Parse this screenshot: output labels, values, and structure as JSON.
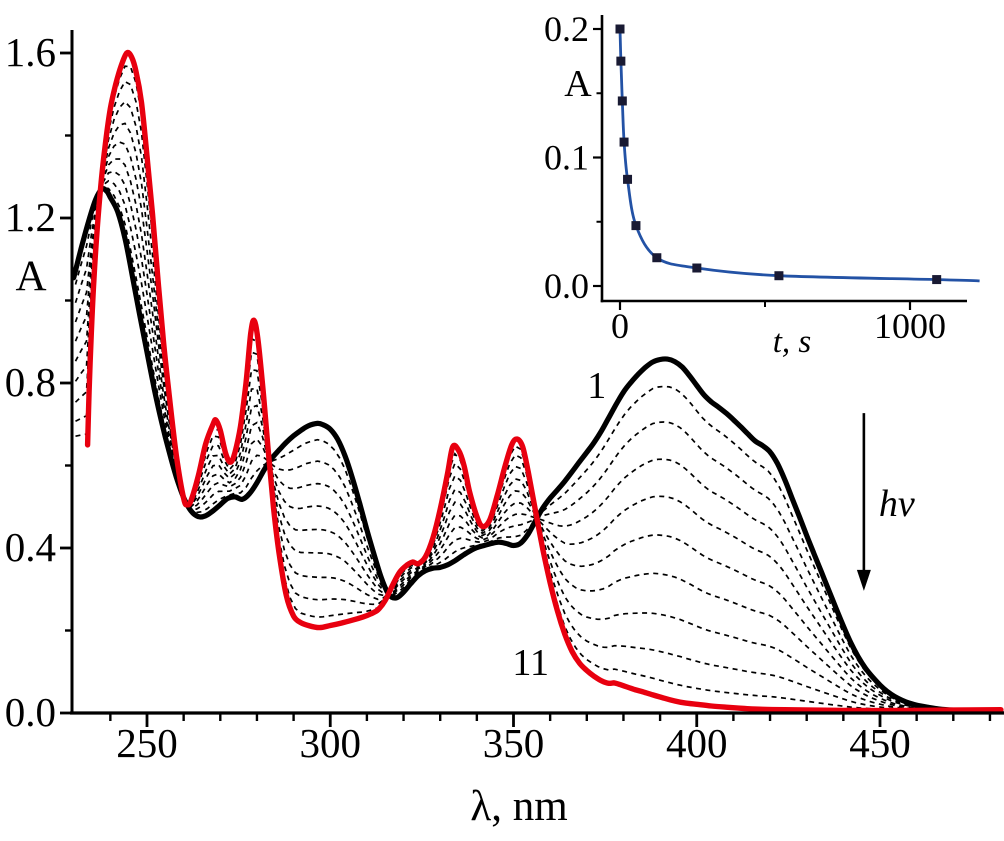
{
  "figure": {
    "background": "#ffffff",
    "colors": {
      "initial_curve": "#000000",
      "final_curve": "#e8000f",
      "intermediate_curve": "#000000",
      "axis": "#000000",
      "inset_line": "#2352a5",
      "inset_marker": "#191a33"
    }
  },
  "chart_data": {
    "main": {
      "type": "line",
      "title": "",
      "xlabel": "λ, nm",
      "ylabel": "A",
      "xlim": [
        230,
        483
      ],
      "ylim": [
        0,
        1.65
      ],
      "grid": false,
      "x_major_ticks": [
        {
          "v": 250,
          "label": "250"
        },
        {
          "v": 300,
          "label": "300"
        },
        {
          "v": 350,
          "label": "350"
        },
        {
          "v": 400,
          "label": "400"
        },
        {
          "v": 450,
          "label": "450"
        }
      ],
      "x_minor_ticks": [
        240,
        260,
        270,
        280,
        290,
        310,
        320,
        330,
        340,
        360,
        370,
        380,
        390,
        410,
        420,
        430,
        440,
        460,
        470,
        480
      ],
      "y_major_ticks": [
        {
          "v": 0.0,
          "label": "0.0"
        },
        {
          "v": 0.4,
          "label": "0.4"
        },
        {
          "v": 0.8,
          "label": "0.8"
        },
        {
          "v": 1.2,
          "label": "1.2"
        },
        {
          "v": 1.6,
          "label": "1.6"
        }
      ],
      "y_minor_ticks": [
        0.2,
        0.6,
        1.0,
        1.4
      ],
      "series": [
        {
          "name": "spectrum 1 (initial, before irradiation)",
          "style": "solid",
          "color": "#000000",
          "width": 5.2,
          "points": [
            [
              230,
              1.055
            ],
            [
              232,
              1.125
            ],
            [
              234,
              1.19
            ],
            [
              236,
              1.245
            ],
            [
              237.7,
              1.27
            ],
            [
              239,
              1.265
            ],
            [
              240,
              1.25
            ],
            [
              242,
              1.215
            ],
            [
              244,
              1.15
            ],
            [
              246,
              1.06
            ],
            [
              248,
              0.965
            ],
            [
              250,
              0.875
            ],
            [
              252,
              0.785
            ],
            [
              254,
              0.705
            ],
            [
              256,
              0.635
            ],
            [
              258,
              0.572
            ],
            [
              260,
              0.522
            ],
            [
              262,
              0.49
            ],
            [
              264,
              0.476
            ],
            [
              266,
              0.478
            ],
            [
              268,
              0.49
            ],
            [
              270,
              0.505
            ],
            [
              272,
              0.52
            ],
            [
              274,
              0.524
            ],
            [
              276,
              0.518
            ],
            [
              278,
              0.532
            ],
            [
              280,
              0.558
            ],
            [
              282,
              0.59
            ],
            [
              284,
              0.617
            ],
            [
              286,
              0.637
            ],
            [
              288,
              0.656
            ],
            [
              290,
              0.672
            ],
            [
              292,
              0.685
            ],
            [
              294,
              0.696
            ],
            [
              296.5,
              0.702
            ],
            [
              298,
              0.699
            ],
            [
              300,
              0.688
            ],
            [
              302,
              0.664
            ],
            [
              304,
              0.624
            ],
            [
              306,
              0.571
            ],
            [
              308,
              0.509
            ],
            [
              310,
              0.444
            ],
            [
              312,
              0.383
            ],
            [
              314,
              0.326
            ],
            [
              316,
              0.287
            ],
            [
              318,
              0.279
            ],
            [
              320,
              0.293
            ],
            [
              322,
              0.314
            ],
            [
              324,
              0.333
            ],
            [
              326,
              0.345
            ],
            [
              328,
              0.351
            ],
            [
              330,
              0.353
            ],
            [
              332,
              0.359
            ],
            [
              334,
              0.369
            ],
            [
              336,
              0.381
            ],
            [
              338,
              0.392
            ],
            [
              340,
              0.401
            ],
            [
              342,
              0.406
            ],
            [
              344,
              0.411
            ],
            [
              346,
              0.414
            ],
            [
              348,
              0.411
            ],
            [
              350,
              0.406
            ],
            [
              352,
              0.412
            ],
            [
              354,
              0.434
            ],
            [
              356,
              0.466
            ],
            [
              358,
              0.497
            ],
            [
              360,
              0.521
            ],
            [
              362,
              0.541
            ],
            [
              364,
              0.562
            ],
            [
              366,
              0.585
            ],
            [
              368,
              0.609
            ],
            [
              370,
              0.632
            ],
            [
              372,
              0.656
            ],
            [
              374,
              0.684
            ],
            [
              376,
              0.716
            ],
            [
              378,
              0.748
            ],
            [
              380,
              0.778
            ],
            [
              382,
              0.801
            ],
            [
              384,
              0.821
            ],
            [
              386,
              0.838
            ],
            [
              388,
              0.851
            ],
            [
              390,
              0.857
            ],
            [
              392,
              0.858
            ],
            [
              394,
              0.852
            ],
            [
              396,
              0.839
            ],
            [
              398,
              0.818
            ],
            [
              400,
              0.794
            ],
            [
              402,
              0.771
            ],
            [
              404,
              0.754
            ],
            [
              406,
              0.741
            ],
            [
              408,
              0.727
            ],
            [
              410,
              0.711
            ],
            [
              412,
              0.694
            ],
            [
              414,
              0.676
            ],
            [
              416,
              0.659
            ],
            [
              418,
              0.648
            ],
            [
              420,
              0.633
            ],
            [
              422,
              0.605
            ],
            [
              424,
              0.566
            ],
            [
              426,
              0.521
            ],
            [
              428,
              0.476
            ],
            [
              430,
              0.43
            ],
            [
              432,
              0.386
            ],
            [
              434,
              0.342
            ],
            [
              436,
              0.298
            ],
            [
              438,
              0.254
            ],
            [
              440,
              0.211
            ],
            [
              442,
              0.171
            ],
            [
              444,
              0.137
            ],
            [
              446,
              0.109
            ],
            [
              448,
              0.087
            ],
            [
              450,
              0.068
            ],
            [
              452,
              0.052
            ],
            [
              454,
              0.04
            ],
            [
              456,
              0.031
            ],
            [
              458,
              0.024
            ],
            [
              460,
              0.019
            ],
            [
              463,
              0.014
            ],
            [
              466,
              0.01
            ],
            [
              470,
              0.007
            ],
            [
              475,
              0.005
            ],
            [
              480,
              0.004
            ],
            [
              483,
              0.004
            ]
          ]
        },
        {
          "name": "spectrum 11 (final photoproduct)",
          "style": "solid",
          "color": "#e8000f",
          "width": 5.4,
          "points": [
            [
              233.8,
              0.65
            ],
            [
              234.2,
              0.78
            ],
            [
              234.8,
              0.92
            ],
            [
              235.5,
              1.05
            ],
            [
              236.3,
              1.16
            ],
            [
              237.3,
              1.27
            ],
            [
              238.5,
              1.37
            ],
            [
              240,
              1.465
            ],
            [
              241.5,
              1.525
            ],
            [
              243,
              1.57
            ],
            [
              244.5,
              1.6
            ],
            [
              245.8,
              1.59
            ],
            [
              247,
              1.555
            ],
            [
              248.5,
              1.48
            ],
            [
              250,
              1.35
            ],
            [
              251.5,
              1.21
            ],
            [
              253,
              1.05
            ],
            [
              254.5,
              0.9
            ],
            [
              256,
              0.775
            ],
            [
              258,
              0.625
            ],
            [
              260,
              0.52
            ],
            [
              261,
              0.505
            ],
            [
              262,
              0.515
            ],
            [
              264,
              0.575
            ],
            [
              266,
              0.652
            ],
            [
              268,
              0.7
            ],
            [
              268.8,
              0.71
            ],
            [
              270,
              0.685
            ],
            [
              271.5,
              0.628
            ],
            [
              272.8,
              0.608
            ],
            [
              274,
              0.632
            ],
            [
              275.5,
              0.695
            ],
            [
              277,
              0.8
            ],
            [
              278.3,
              0.92
            ],
            [
              279.2,
              0.952
            ],
            [
              280.2,
              0.91
            ],
            [
              281.5,
              0.8
            ],
            [
              283,
              0.645
            ],
            [
              284.5,
              0.5
            ],
            [
              286,
              0.39
            ],
            [
              288,
              0.285
            ],
            [
              290,
              0.235
            ],
            [
              292,
              0.219
            ],
            [
              294,
              0.212
            ],
            [
              297,
              0.207
            ],
            [
              300,
              0.212
            ],
            [
              303,
              0.218
            ],
            [
              306,
              0.225
            ],
            [
              309,
              0.233
            ],
            [
              311,
              0.24
            ],
            [
              313,
              0.25
            ],
            [
              315,
              0.273
            ],
            [
              317,
              0.31
            ],
            [
              319,
              0.342
            ],
            [
              321,
              0.359
            ],
            [
              322.5,
              0.366
            ],
            [
              324,
              0.362
            ],
            [
              326,
              0.379
            ],
            [
              328,
              0.424
            ],
            [
              330,
              0.494
            ],
            [
              332,
              0.58
            ],
            [
              333.4,
              0.645
            ],
            [
              335,
              0.637
            ],
            [
              336.5,
              0.6
            ],
            [
              338,
              0.537
            ],
            [
              340,
              0.476
            ],
            [
              341.6,
              0.452
            ],
            [
              343.5,
              0.468
            ],
            [
              345.5,
              0.525
            ],
            [
              347.5,
              0.592
            ],
            [
              349.5,
              0.65
            ],
            [
              351,
              0.664
            ],
            [
              352.5,
              0.645
            ],
            [
              354,
              0.585
            ],
            [
              356,
              0.49
            ],
            [
              358,
              0.397
            ],
            [
              360,
              0.316
            ],
            [
              362,
              0.247
            ],
            [
              364,
              0.191
            ],
            [
              366,
              0.149
            ],
            [
              368,
              0.121
            ],
            [
              370,
              0.103
            ],
            [
              372,
              0.089
            ],
            [
              374,
              0.078
            ],
            [
              376,
              0.072
            ],
            [
              377.5,
              0.073
            ],
            [
              379,
              0.069
            ],
            [
              381,
              0.063
            ],
            [
              383,
              0.057
            ],
            [
              385,
              0.052
            ],
            [
              388,
              0.044
            ],
            [
              391,
              0.036
            ],
            [
              394,
              0.029
            ],
            [
              397,
              0.024
            ],
            [
              400,
              0.021
            ],
            [
              404,
              0.017
            ],
            [
              408,
              0.014
            ],
            [
              413,
              0.011
            ],
            [
              418,
              0.009
            ],
            [
              424,
              0.008
            ],
            [
              432,
              0.007
            ],
            [
              442,
              0.006
            ],
            [
              455,
              0.006
            ],
            [
              468,
              0.007
            ],
            [
              483,
              0.008
            ]
          ]
        },
        {
          "name": "spectra 2-10 (intermediate irradiation times, dashed)",
          "style": "dashed",
          "color": "#000000",
          "width": 1.7,
          "mix_fractions_of_initial": [
            0.92,
            0.815,
            0.705,
            0.595,
            0.48,
            0.365,
            0.245,
            0.135,
            0.05
          ]
        }
      ],
      "annotations": [
        {
          "text": "1",
          "lambda": 372.7,
          "A": 0.795
        },
        {
          "text": "11",
          "lambda": 354.7,
          "A": 0.124
        },
        {
          "text": "hv",
          "lambda": 454.6,
          "A": 0.509
        }
      ],
      "arrow": {
        "lambda": 445.6,
        "A_from": 0.727,
        "A_to": 0.296,
        "direction": "down"
      }
    },
    "inset": {
      "type": "scatter+line",
      "xlabel": "t, s",
      "ylabel": "A",
      "xlim": [
        -60,
        1200
      ],
      "ylim": [
        0,
        0.21
      ],
      "x_major_ticks": [
        {
          "v": 0,
          "label": "0"
        },
        {
          "v": 1000,
          "label": "1000"
        }
      ],
      "x_minor_ticks": [
        500
      ],
      "y_major_ticks": [
        {
          "v": 0.0,
          "label": "0.0"
        },
        {
          "v": 0.1,
          "label": "0.1"
        },
        {
          "v": 0.2,
          "label": "0.2"
        }
      ],
      "y_minor_ticks": [
        0.05,
        0.15
      ],
      "x": [
        0,
        3,
        8,
        14,
        26,
        55,
        127,
        265,
        548,
        1092
      ],
      "y": [
        0.2,
        0.175,
        0.144,
        0.112,
        0.083,
        0.047,
        0.022,
        0.014,
        0.008,
        0.005
      ],
      "fit_line_extension": {
        "t": 1240,
        "A": 0.004
      }
    }
  }
}
